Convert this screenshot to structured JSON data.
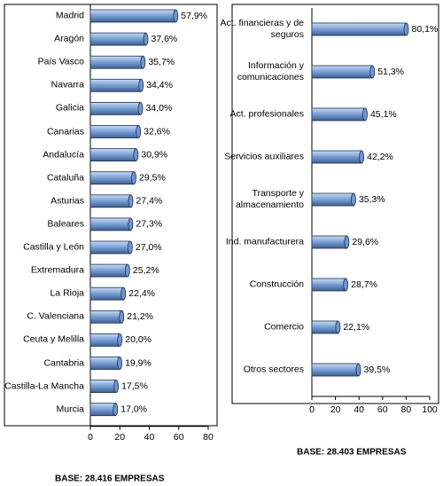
{
  "chart_data": [
    {
      "type": "bar",
      "orientation": "horizontal",
      "color": "#6f97cf",
      "categories": [
        "Madrid",
        "Aragón",
        "País Vasco",
        "Navarra",
        "Galicia",
        "Canarias",
        "Andalucía",
        "Cataluña",
        "Asturias",
        "Baleares",
        "Castilla y León",
        "Extremadura",
        "La Rioja",
        "C. Valenciana",
        "Ceuta y Melilla",
        "Cantabria",
        "Castilla-La Mancha",
        "Murcia"
      ],
      "values": [
        57.9,
        37.6,
        35.7,
        34.4,
        34.0,
        32.6,
        30.9,
        29.5,
        27.4,
        27.3,
        27.0,
        25.2,
        22.4,
        21.2,
        20.0,
        19.9,
        17.5,
        17.0
      ],
      "value_labels": [
        "57,9%",
        "37,6%",
        "35,7%",
        "34,4%",
        "34,0%",
        "32,6%",
        "30,9%",
        "29,5%",
        "27,4%",
        "27,3%",
        "27,0%",
        "25,2%",
        "22,4%",
        "21,2%",
        "20,0%",
        "19,9%",
        "17,5%",
        "17,0%"
      ],
      "xlim": [
        0,
        80
      ],
      "xticks": [
        0,
        20,
        40,
        60,
        80
      ],
      "footnote": "BASE: 28.416  EMPRESAS"
    },
    {
      "type": "bar",
      "orientation": "horizontal",
      "color": "#6f97cf",
      "categories": [
        "Act. financieras  y de\nseguros",
        "Información y\ncomunicaciones",
        "Act. profesionales",
        "Servicios auxiliares",
        "Transporte y\nalmacenamiento",
        "Ind. manufacturera",
        "Construcción",
        "Comercio",
        "Otros sectores"
      ],
      "values": [
        80.1,
        51.3,
        45.1,
        42.2,
        35.3,
        29.6,
        28.7,
        22.1,
        39.5
      ],
      "value_labels": [
        "80,1%",
        "51,3%",
        "45,1%",
        "42,2%",
        "35,3%",
        "29,6%",
        "28,7%",
        "22,1%",
        "39,5%"
      ],
      "xlim": [
        0,
        100
      ],
      "xticks": [
        0,
        20,
        40,
        60,
        80,
        100
      ],
      "footnote": "BASE: 28.403  EMPRESAS"
    }
  ]
}
